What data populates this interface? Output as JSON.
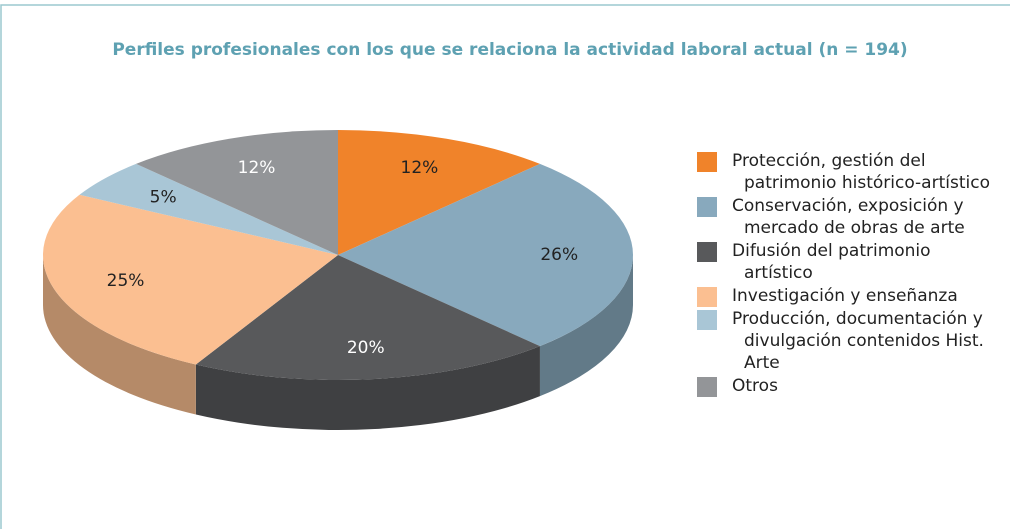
{
  "chart_data": {
    "type": "pie",
    "title": "Perfiles profesionales con los que se relaciona la actividad laboral actual (n = 194)",
    "categories": [
      "Protección, gestión del patrimonio histórico-artístico",
      "Conservación, exposición y mercado de obras de arte",
      "Difusión del patrimonio artístico",
      "Investigación y enseñanza",
      "Producción, documentación y divulgación contenidos Hist. Arte",
      "Otros"
    ],
    "values": [
      12,
      26,
      20,
      25,
      5,
      12
    ],
    "value_labels": [
      "12%",
      "26%",
      "20%",
      "25%",
      "5%",
      "12%"
    ],
    "colors": [
      "#f0832a",
      "#88a9bd",
      "#58595b",
      "#fbbf91",
      "#a9c6d6",
      "#939598"
    ],
    "legend": "right"
  }
}
